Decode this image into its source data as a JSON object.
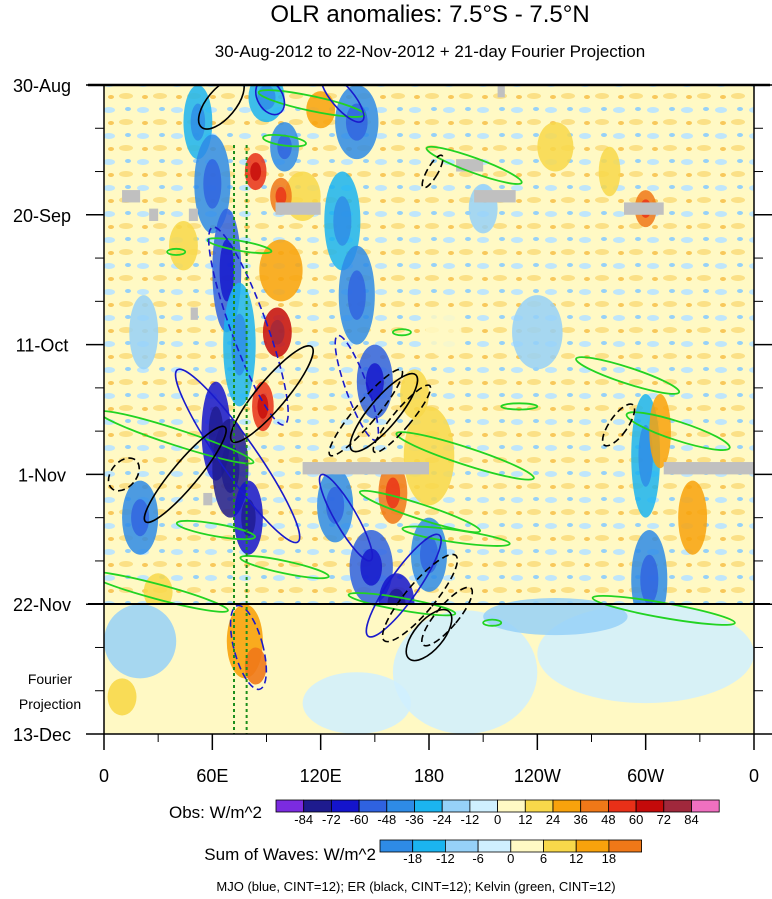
{
  "chart_data": {
    "type": "heatmap",
    "title": "OLR anomalies: 7.5°S - 7.5°N",
    "subtitle": "30-Aug-2012 to 22-Nov-2012 + 21-day Fourier Projection",
    "x_axis": {
      "label": "",
      "tick_labels": [
        "0",
        "60E",
        "120E",
        "180",
        "120W",
        "60W",
        "0"
      ],
      "range_deg_east": [
        0,
        360
      ],
      "tick_values_deg_east": [
        0,
        60,
        120,
        180,
        240,
        300,
        360
      ]
    },
    "y_axis": {
      "label": "",
      "tick_labels": [
        "30-Aug",
        "20-Sep",
        "11-Oct",
        "1-Nov",
        "22-Nov",
        "13-Dec"
      ],
      "tick_values_day": [
        0,
        21,
        42,
        63,
        84,
        105
      ],
      "range_day": [
        0,
        105
      ],
      "observation_end_day": 84
    },
    "projection_label_lines": [
      "Fourier",
      "Projection"
    ],
    "vertical_reference_lines": [
      {
        "lon_deg_east": 72,
        "style": "dotted",
        "color": "#1c8f1c"
      },
      {
        "lon_deg_east": 79,
        "style": "dotted",
        "color": "#1c8f1c"
      }
    ],
    "colorbars": [
      {
        "name": "Obs: W/m^2",
        "tick_labels": [
          "-84",
          "-72",
          "-60",
          "-48",
          "-36",
          "-24",
          "-12",
          "0",
          "12",
          "24",
          "36",
          "48",
          "60",
          "72",
          "84"
        ],
        "colors": [
          "#7b2be0",
          "#1e1b8e",
          "#1414cc",
          "#2f62e0",
          "#2e8be6",
          "#1bb4f0",
          "#96d1f8",
          "#d0f0ff",
          "#fff9c4",
          "#f8d84a",
          "#f8a20c",
          "#f07818",
          "#e83018",
          "#c40a0a",
          "#a0283c",
          "#f070c0"
        ]
      },
      {
        "name": "Sum of Waves: W/m^2",
        "tick_labels": [
          "-18",
          "-12",
          "-6",
          "0",
          "6",
          "12",
          "18"
        ],
        "colors": [
          "#2e8be6",
          "#1bb4f0",
          "#96d1f8",
          "#d0f0ff",
          "#fff9c4",
          "#f8d84a",
          "#f8a20c",
          "#f07818"
        ]
      }
    ],
    "wave_contours": {
      "caption": "MJO (blue, CINT=12); ER (black, CINT=12); Kelvin (green, CINT=12)",
      "series": [
        {
          "name": "MJO",
          "color": "#1a1acc",
          "cint": 12
        },
        {
          "name": "ER",
          "color": "#000000",
          "cint": 12
        },
        {
          "name": "Kelvin",
          "color": "#22d322",
          "cint": 12
        }
      ]
    },
    "missing_data_color": "#c0c0c0"
  }
}
